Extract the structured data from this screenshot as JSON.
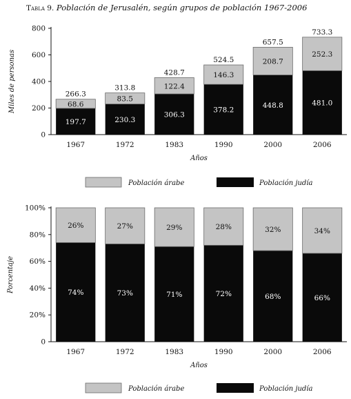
{
  "figure": {
    "label": "Tabla 9.",
    "title": "Población de Jerusalén, según grupos de población 1967-2006"
  },
  "colors": {
    "arab": "#c4c4c4",
    "jewish": "#0a0a0a",
    "axis": "#111111"
  },
  "chart_data": [
    {
      "type": "bar",
      "stacked": true,
      "categories": [
        "1967",
        "1972",
        "1983",
        "1990",
        "2000",
        "2006"
      ],
      "series": [
        {
          "name": "Población judía",
          "values": [
            197.7,
            230.3,
            306.3,
            378.2,
            448.8,
            481.0
          ],
          "labels": [
            "197.7",
            "230.3",
            "306.3",
            "378.2",
            "448.8",
            "481.0"
          ]
        },
        {
          "name": "Población árabe",
          "values": [
            68.6,
            83.5,
            122.4,
            146.3,
            208.7,
            252.3
          ],
          "labels": [
            "68.6",
            "83.5",
            "122.4",
            "146.3",
            "208.7",
            "252.3"
          ]
        }
      ],
      "totals": [
        "266.3",
        "313.8",
        "428.7",
        "524.5",
        "657.5",
        "733.3"
      ],
      "xlabel": "Años",
      "ylabel": "Miles de personas",
      "ylim": [
        0,
        800
      ],
      "yticks": [
        "0",
        "200",
        "400",
        "600",
        "800"
      ],
      "legend": [
        "Población árabe",
        "Población judía"
      ],
      "legend_position": "bottom"
    },
    {
      "type": "bar",
      "stacked": true,
      "percent": true,
      "categories": [
        "1967",
        "1972",
        "1983",
        "1990",
        "2000",
        "2006"
      ],
      "series": [
        {
          "name": "Población judía",
          "values": [
            74,
            73,
            71,
            72,
            68,
            66
          ],
          "labels": [
            "74%",
            "73%",
            "71%",
            "72%",
            "68%",
            "66%"
          ]
        },
        {
          "name": "Población árabe",
          "values": [
            26,
            27,
            29,
            28,
            32,
            34
          ],
          "labels": [
            "26%",
            "27%",
            "29%",
            "28%",
            "32%",
            "34%"
          ]
        }
      ],
      "xlabel": "Años",
      "ylabel": "Porcentaje",
      "ylim": [
        0,
        100
      ],
      "yticks": [
        "0",
        "20%",
        "40%",
        "60%",
        "80%",
        "100%"
      ],
      "legend": [
        "Población árabe",
        "Población judía"
      ],
      "legend_position": "bottom"
    }
  ]
}
